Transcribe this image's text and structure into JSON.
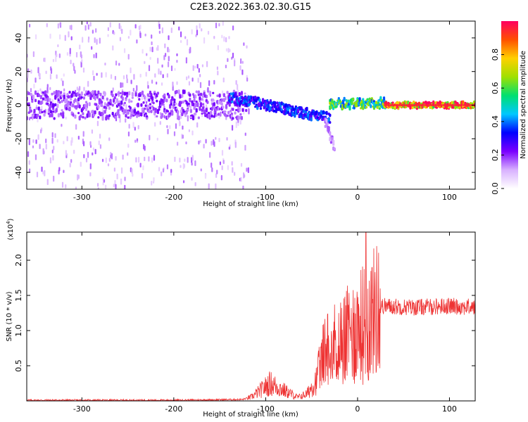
{
  "title": "C2E3.2022.363.02.30.G15",
  "colors": {
    "snr_line": "#ee3333",
    "axes": "#000000",
    "colorbar_stops": [
      "#ffffff",
      "#d8b0ff",
      "#7a00ff",
      "#0000ff",
      "#00c8ff",
      "#00e070",
      "#a0e000",
      "#ffd000",
      "#ff5000",
      "#ff0060"
    ]
  },
  "chart_data": [
    {
      "type": "heatmap",
      "name_role": "spectrogram",
      "xlabel": "Height of straight line (km)",
      "ylabel": "Frequency (Hz)",
      "xlim": [
        -360,
        128
      ],
      "ylim": [
        -50,
        50
      ],
      "x_ticks": [
        -300,
        -200,
        -100,
        0,
        100
      ],
      "y_ticks": [
        -40,
        -20,
        0,
        20,
        40
      ],
      "colorbar": {
        "label": "Normalized spectral amplitude",
        "range": [
          0,
          1
        ],
        "ticks": [
          "0.0",
          "0.2",
          "0.4",
          "0.6",
          "0.8"
        ]
      },
      "regions": [
        {
          "x_range": [
            -360,
            -120
          ],
          "freq_range": [
            -50,
            50
          ],
          "amplitude": 0.05,
          "note_kind": "diffuse noise"
        },
        {
          "x_range": [
            -360,
            -120
          ],
          "freq_center": 0,
          "freq_halfwidth": 8,
          "amplitude": 0.2
        },
        {
          "x_range": [
            -140,
            -30
          ],
          "freq_center_start": 5,
          "freq_center_end": -8,
          "amplitude": 0.35
        },
        {
          "x_range": [
            -35,
            -25
          ],
          "freq_center_start": -10,
          "freq_center_end": -25,
          "amplitude": 0.15
        },
        {
          "x_range": [
            -30,
            30
          ],
          "freq_center": 1,
          "freq_halfwidth": 3,
          "amplitude": 0.6
        },
        {
          "x_range": [
            30,
            128
          ],
          "freq_center": 0,
          "freq_halfwidth": 1.5,
          "amplitude": 0.95
        }
      ]
    },
    {
      "type": "line",
      "xlabel": "Height of straight line (km)",
      "ylabel": "SNR (10 * v/v)",
      "y_multiplier": "(x10",
      "y_multiplier_exp": "4",
      "y_multiplier_close": ")",
      "xlim": [
        -360,
        128
      ],
      "ylim": [
        0,
        2.4
      ],
      "x_ticks": [
        -300,
        -200,
        -100,
        0,
        100
      ],
      "y_ticks": [
        "0.5",
        "1.0",
        "1.5",
        "2.0"
      ],
      "series_profile": [
        {
          "x": -360,
          "y": 0.01
        },
        {
          "x": -200,
          "y": 0.01
        },
        {
          "x": -125,
          "y": 0.02
        },
        {
          "x": -115,
          "y": 0.06
        },
        {
          "x": -95,
          "y": 0.25
        },
        {
          "x": -80,
          "y": 0.15
        },
        {
          "x": -65,
          "y": 0.05
        },
        {
          "x": -55,
          "y": 0.1
        },
        {
          "x": -45,
          "y": 0.3
        },
        {
          "x": -35,
          "y": 0.75
        },
        {
          "x": -20,
          "y": 0.85
        },
        {
          "x": -5,
          "y": 1.0
        },
        {
          "x": 10,
          "y": 1.15
        },
        {
          "x": 20,
          "y": 1.3
        },
        {
          "x": 28,
          "y": 1.35
        },
        {
          "x": 60,
          "y": 1.33
        },
        {
          "x": 100,
          "y": 1.35
        },
        {
          "x": 128,
          "y": 1.33
        }
      ],
      "spike": {
        "x": 9,
        "y": 2.4
      }
    }
  ]
}
